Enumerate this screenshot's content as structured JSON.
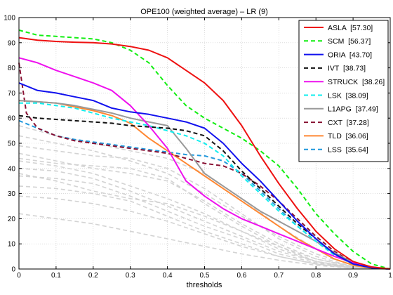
{
  "chart_data": {
    "type": "line",
    "title": "OPE100 (weighted average) – LR (9)",
    "xlabel": "thresholds",
    "ylabel": "",
    "xlim": [
      0,
      1
    ],
    "ylim": [
      0,
      100
    ],
    "xticks": [
      "0",
      "0.1",
      "0.2",
      "0.3",
      "0.4",
      "0.5",
      "0.6",
      "0.7",
      "0.8",
      "0.9",
      "1"
    ],
    "yticks": [
      "0",
      "10",
      "20",
      "30",
      "40",
      "50",
      "60",
      "70",
      "80",
      "90",
      "100"
    ],
    "grid": true,
    "legend_position": "top-right",
    "series": [
      {
        "name": "ASLA  [57.30]",
        "color": "#ee1111",
        "dash": "solid",
        "x": [
          0,
          0.05,
          0.1,
          0.15,
          0.2,
          0.25,
          0.3,
          0.35,
          0.4,
          0.45,
          0.5,
          0.55,
          0.6,
          0.65,
          0.7,
          0.75,
          0.8,
          0.85,
          0.9,
          0.95,
          1
        ],
        "y": [
          92,
          91,
          90.5,
          90.2,
          90,
          89.5,
          88.5,
          87,
          84,
          79,
          74,
          67,
          57,
          45,
          34,
          24,
          15,
          8,
          3,
          0.8,
          0
        ]
      },
      {
        "name": "SCM  [56.37]",
        "color": "#11ee11",
        "dash": "dashed",
        "x": [
          0,
          0.05,
          0.1,
          0.15,
          0.2,
          0.25,
          0.3,
          0.35,
          0.4,
          0.45,
          0.5,
          0.55,
          0.6,
          0.65,
          0.7,
          0.75,
          0.8,
          0.85,
          0.9,
          0.95,
          1
        ],
        "y": [
          95,
          93,
          92.5,
          92,
          91.5,
          90,
          87,
          82,
          73,
          65,
          60,
          56,
          52,
          47,
          41,
          32,
          22,
          14,
          7,
          2,
          0
        ]
      },
      {
        "name": "ORIA  [43.70]",
        "color": "#1111ee",
        "dash": "solid",
        "x": [
          0,
          0.05,
          0.1,
          0.15,
          0.2,
          0.25,
          0.3,
          0.35,
          0.4,
          0.45,
          0.5,
          0.55,
          0.6,
          0.65,
          0.7,
          0.75,
          0.8,
          0.85,
          0.9,
          0.95,
          1
        ],
        "y": [
          74,
          71,
          70,
          68.5,
          67,
          64,
          62.5,
          61.5,
          60,
          58.5,
          56,
          50,
          42,
          35,
          27,
          19,
          12,
          6,
          2,
          0.5,
          0
        ]
      },
      {
        "name": "IVT  [38.73]",
        "color": "#111111",
        "dash": "dashed",
        "x": [
          0,
          0.05,
          0.1,
          0.15,
          0.2,
          0.25,
          0.3,
          0.35,
          0.4,
          0.45,
          0.5,
          0.55,
          0.6,
          0.65,
          0.7,
          0.75,
          0.8,
          0.85,
          0.9,
          0.95,
          1
        ],
        "y": [
          61,
          60,
          59.5,
          59,
          58.5,
          58,
          57,
          56.5,
          56,
          55,
          53,
          47,
          39,
          32,
          25,
          18,
          12,
          6,
          2,
          0.5,
          0
        ]
      },
      {
        "name": "STRUCK  [38.26]",
        "color": "#ee11ee",
        "dash": "solid",
        "x": [
          0,
          0.05,
          0.1,
          0.15,
          0.2,
          0.25,
          0.3,
          0.35,
          0.4,
          0.45,
          0.5,
          0.55,
          0.6,
          0.65,
          0.7,
          0.75,
          0.8,
          0.85,
          0.9,
          0.95,
          1
        ],
        "y": [
          84,
          82,
          79,
          76.5,
          74,
          71,
          65,
          57,
          48,
          35,
          29,
          24,
          20,
          17,
          14,
          11,
          8,
          5,
          2.5,
          0.8,
          0
        ]
      },
      {
        "name": "LSK  [38.09]",
        "color": "#11eeee",
        "dash": "dashed",
        "x": [
          0,
          0.05,
          0.1,
          0.15,
          0.2,
          0.25,
          0.3,
          0.35,
          0.4,
          0.45,
          0.5,
          0.55,
          0.6,
          0.65,
          0.7,
          0.75,
          0.8,
          0.85,
          0.9,
          0.95,
          1
        ],
        "y": [
          66,
          66,
          65,
          64,
          62,
          60,
          58.5,
          57,
          55,
          53,
          50,
          45,
          37,
          30,
          23,
          17,
          11,
          5.5,
          2,
          0.5,
          0
        ]
      },
      {
        "name": "L1APG  [37.49]",
        "color": "#999999",
        "dash": "solid",
        "x": [
          0,
          0.05,
          0.1,
          0.15,
          0.2,
          0.25,
          0.3,
          0.35,
          0.4,
          0.45,
          0.5,
          0.55,
          0.6,
          0.65,
          0.7,
          0.75,
          0.8,
          0.85,
          0.9,
          0.95,
          1
        ],
        "y": [
          67,
          66.5,
          66,
          65,
          63.5,
          62,
          60,
          58.5,
          57,
          48,
          38,
          33,
          28,
          23,
          19,
          15,
          11,
          6.5,
          2.5,
          0.8,
          0
        ]
      },
      {
        "name": "CXT  [37.28]",
        "color": "#881133",
        "dash": "dashed",
        "x": [
          0,
          0.02,
          0.05,
          0.1,
          0.15,
          0.2,
          0.25,
          0.3,
          0.35,
          0.4,
          0.45,
          0.5,
          0.55,
          0.6,
          0.65,
          0.7,
          0.75,
          0.8,
          0.85,
          0.9,
          0.95,
          1
        ],
        "y": [
          82,
          62,
          56,
          53,
          51,
          50,
          49,
          48,
          47,
          46,
          44,
          42,
          41,
          38,
          33,
          27,
          20,
          13,
          7,
          2.5,
          0.5,
          0
        ]
      },
      {
        "name": "TLD  [36.06]",
        "color": "#ff8833",
        "dash": "solid",
        "x": [
          0,
          0.05,
          0.1,
          0.15,
          0.2,
          0.25,
          0.3,
          0.35,
          0.4,
          0.45,
          0.5,
          0.55,
          0.6,
          0.65,
          0.7,
          0.75,
          0.8,
          0.85,
          0.9,
          0.95,
          1
        ],
        "y": [
          67,
          66.5,
          66,
          64.5,
          63,
          61,
          58,
          52,
          47,
          42,
          37,
          32,
          27,
          22,
          17,
          12,
          8,
          4,
          1.5,
          0.3,
          0
        ]
      },
      {
        "name": "LSS  [35.64]",
        "color": "#2299dd",
        "dash": "dashed",
        "x": [
          0,
          0.05,
          0.1,
          0.15,
          0.2,
          0.25,
          0.3,
          0.35,
          0.4,
          0.45,
          0.5,
          0.55,
          0.6,
          0.65,
          0.7,
          0.75,
          0.8,
          0.85,
          0.9,
          0.95,
          1
        ],
        "y": [
          59,
          56,
          53,
          51.5,
          50.5,
          49.5,
          48.5,
          47.5,
          46.5,
          45.5,
          45,
          43,
          38,
          31,
          24,
          17,
          11,
          5.5,
          2,
          0.5,
          0
        ]
      }
    ],
    "background_series": [
      {
        "color": "#d3d3d3",
        "dash": "dashed",
        "x": [
          0,
          0.1,
          0.2,
          0.3,
          0.4,
          0.5,
          0.6,
          0.7,
          0.8,
          0.9,
          1
        ],
        "y": [
          57,
          53,
          50,
          47,
          44,
          38,
          28,
          17,
          8,
          2,
          0
        ]
      },
      {
        "color": "#d3d3d3",
        "dash": "dashed",
        "x": [
          0,
          0.1,
          0.2,
          0.3,
          0.4,
          0.5,
          0.6,
          0.7,
          0.8,
          0.9,
          1
        ],
        "y": [
          53,
          50,
          47,
          43,
          38,
          30,
          21,
          13,
          6,
          1.5,
          0
        ]
      },
      {
        "color": "#d3d3d3",
        "dash": "dashed",
        "x": [
          0,
          0.1,
          0.2,
          0.3,
          0.4,
          0.5,
          0.6,
          0.7,
          0.8,
          0.9,
          1
        ],
        "y": [
          49,
          47,
          45,
          44,
          40,
          32,
          22,
          12,
          5,
          1,
          0
        ]
      },
      {
        "color": "#d3d3d3",
        "dash": "dashed",
        "x": [
          0,
          0.1,
          0.2,
          0.3,
          0.4,
          0.5,
          0.6,
          0.7,
          0.8,
          0.9,
          1
        ],
        "y": [
          46,
          43,
          40,
          38,
          35,
          27,
          18,
          10,
          4,
          1,
          0
        ]
      },
      {
        "color": "#d3d3d3",
        "dash": "dashed",
        "x": [
          0,
          0.1,
          0.2,
          0.3,
          0.4,
          0.5,
          0.6,
          0.7,
          0.8,
          0.9,
          1
        ],
        "y": [
          43,
          41,
          38,
          33,
          28,
          22,
          15,
          9,
          4,
          1,
          0
        ]
      },
      {
        "color": "#d3d3d3",
        "dash": "dashed",
        "x": [
          0,
          0.1,
          0.2,
          0.3,
          0.4,
          0.5,
          0.6,
          0.7,
          0.8,
          0.9,
          1
        ],
        "y": [
          40,
          39,
          36,
          31,
          25,
          19,
          13,
          7,
          3,
          0.8,
          0
        ]
      },
      {
        "color": "#d3d3d3",
        "dash": "dashed",
        "x": [
          0,
          0.1,
          0.2,
          0.3,
          0.4,
          0.5,
          0.6,
          0.7,
          0.8,
          0.9,
          1
        ],
        "y": [
          37,
          36,
          34,
          29,
          23,
          17,
          12,
          6,
          2.5,
          0.5,
          0
        ]
      },
      {
        "color": "#d3d3d3",
        "dash": "dashed",
        "x": [
          0,
          0.1,
          0.2,
          0.3,
          0.4,
          0.5,
          0.6,
          0.7,
          0.8,
          0.9,
          1
        ],
        "y": [
          33,
          32,
          30,
          27,
          21,
          15,
          10,
          5,
          2,
          0.4,
          0
        ]
      },
      {
        "color": "#d3d3d3",
        "dash": "dashed",
        "x": [
          0,
          0.1,
          0.2,
          0.3,
          0.4,
          0.5,
          0.6,
          0.7,
          0.8,
          0.9,
          1
        ],
        "y": [
          29,
          28,
          26,
          23,
          19,
          14,
          9,
          5,
          2,
          0.4,
          0
        ]
      },
      {
        "color": "#d3d3d3",
        "dash": "dashed",
        "x": [
          0,
          0.1,
          0.2,
          0.3,
          0.4,
          0.5,
          0.6,
          0.7,
          0.8,
          0.9,
          1
        ],
        "y": [
          22,
          20,
          18,
          15,
          12,
          9,
          6,
          3.5,
          1.5,
          0.3,
          0
        ]
      },
      {
        "color": "#d3d3d3",
        "dash": "dashed",
        "x": [
          0,
          0.1,
          0.2,
          0.3,
          0.4,
          0.5,
          0.6,
          0.7,
          0.8,
          0.9,
          1
        ],
        "y": [
          44,
          42,
          41,
          40,
          36,
          26,
          17,
          9,
          3,
          0.6,
          0
        ]
      },
      {
        "color": "#d3d3d3",
        "dash": "dashed",
        "x": [
          0,
          0.1,
          0.2,
          0.3,
          0.4,
          0.5,
          0.6,
          0.7,
          0.8,
          0.9,
          1
        ],
        "y": [
          38,
          35,
          31,
          28,
          26,
          21,
          15,
          8,
          3,
          0.6,
          0
        ]
      }
    ]
  }
}
